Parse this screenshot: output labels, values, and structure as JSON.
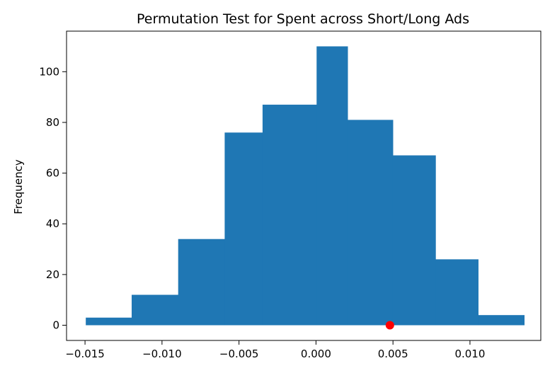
{
  "chart_data": {
    "type": "bar",
    "title": "Permutation Test for Spent across Short/Long Ads",
    "xlabel": "",
    "ylabel": "Frequency",
    "bin_edges": [
      -0.01495,
      -0.01197,
      -0.00895,
      -0.00593,
      -0.00347,
      4e-05,
      0.00205,
      0.00499,
      0.00776,
      0.01053,
      0.01352
    ],
    "values": [
      3,
      12,
      34,
      76,
      87,
      110,
      81,
      67,
      26,
      4
    ],
    "xlim": [
      -0.0162,
      0.0146
    ],
    "ylim": [
      -6,
      116
    ],
    "xticks": [
      -0.015,
      -0.01,
      -0.005,
      0.0,
      0.005,
      0.01
    ],
    "xtick_labels": [
      "−0.015",
      "−0.010",
      "−0.005",
      "0.000",
      "0.005",
      "0.010"
    ],
    "yticks": [
      0,
      20,
      40,
      60,
      80,
      100
    ],
    "ytick_labels": [
      "0",
      "20",
      "40",
      "60",
      "80",
      "100"
    ],
    "bar_color": "#1f77b4",
    "marker": {
      "x": 0.0048,
      "y": 0,
      "color": "#ff0000"
    },
    "grid": false
  }
}
